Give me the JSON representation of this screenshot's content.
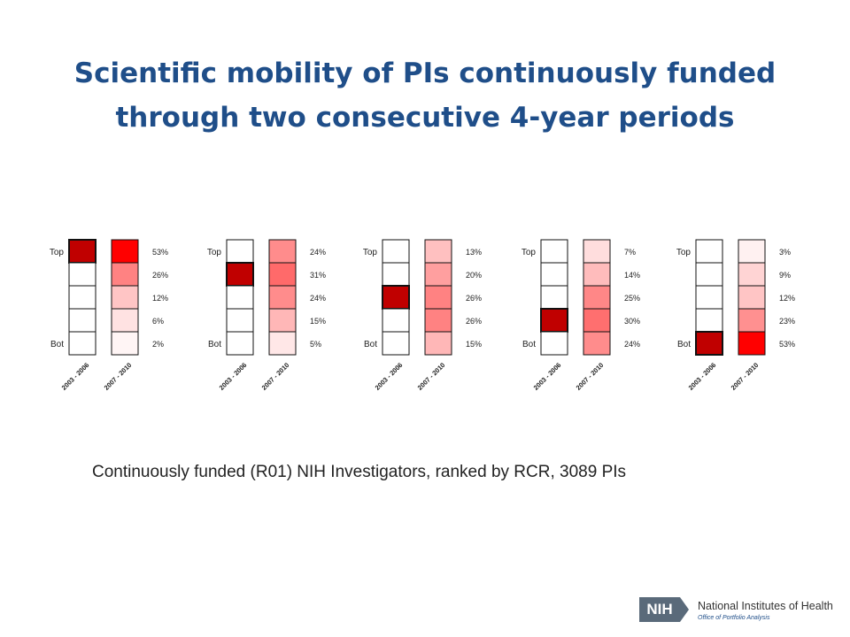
{
  "title": {
    "line1": "Scientific mobility of PIs continuously  funded",
    "line2": "through two consecutive 4-year periods"
  },
  "caption": "Continuously funded (R01) NIH Investigators, ranked by RCR,  3089 PIs",
  "footer": {
    "logo_text": "NIH",
    "org_name": "National Institutes of Health",
    "office_name": "Office of Portfolio Analysis"
  },
  "colors": {
    "title": "#1f4e89",
    "highlight": "#c00000",
    "heat_max": "#ff0000",
    "heat_min": "#ffffff"
  },
  "chart_data": [
    {
      "type": "heatmap",
      "row_labels": [
        "Top",
        "Bot"
      ],
      "x_labels": [
        "2003 - 2006",
        "2007 - 2010"
      ],
      "highlight_row": 1,
      "values": [
        53,
        26,
        12,
        6,
        2
      ],
      "labels": [
        "53%",
        "26%",
        "12%",
        "6%",
        "2%"
      ]
    },
    {
      "type": "heatmap",
      "row_labels": [
        "Top",
        "Bot"
      ],
      "x_labels": [
        "2003 - 2006",
        "2007 - 2010"
      ],
      "highlight_row": 2,
      "values": [
        24,
        31,
        24,
        15,
        5
      ],
      "labels": [
        "24%",
        "31%",
        "24%",
        "15%",
        "5%"
      ]
    },
    {
      "type": "heatmap",
      "row_labels": [
        "Top",
        "Bot"
      ],
      "x_labels": [
        "2003 - 2006",
        "2007 - 2010"
      ],
      "highlight_row": 3,
      "values": [
        13,
        20,
        26,
        26,
        15
      ],
      "labels": [
        "13%",
        "20%",
        "26%",
        "26%",
        "15%"
      ]
    },
    {
      "type": "heatmap",
      "row_labels": [
        "Top",
        "Bot"
      ],
      "x_labels": [
        "2003 - 2006",
        "2007 - 2010"
      ],
      "highlight_row": 4,
      "values": [
        7,
        14,
        25,
        30,
        24
      ],
      "labels": [
        "7%",
        "14%",
        "25%",
        "30%",
        "24%"
      ]
    },
    {
      "type": "heatmap",
      "row_labels": [
        "Top",
        "Bot"
      ],
      "x_labels": [
        "2003 - 2006",
        "2007 - 2010"
      ],
      "highlight_row": 5,
      "values": [
        3,
        9,
        12,
        23,
        53
      ],
      "labels": [
        "3%",
        "9%",
        "12%",
        "23%",
        "53%"
      ]
    }
  ]
}
